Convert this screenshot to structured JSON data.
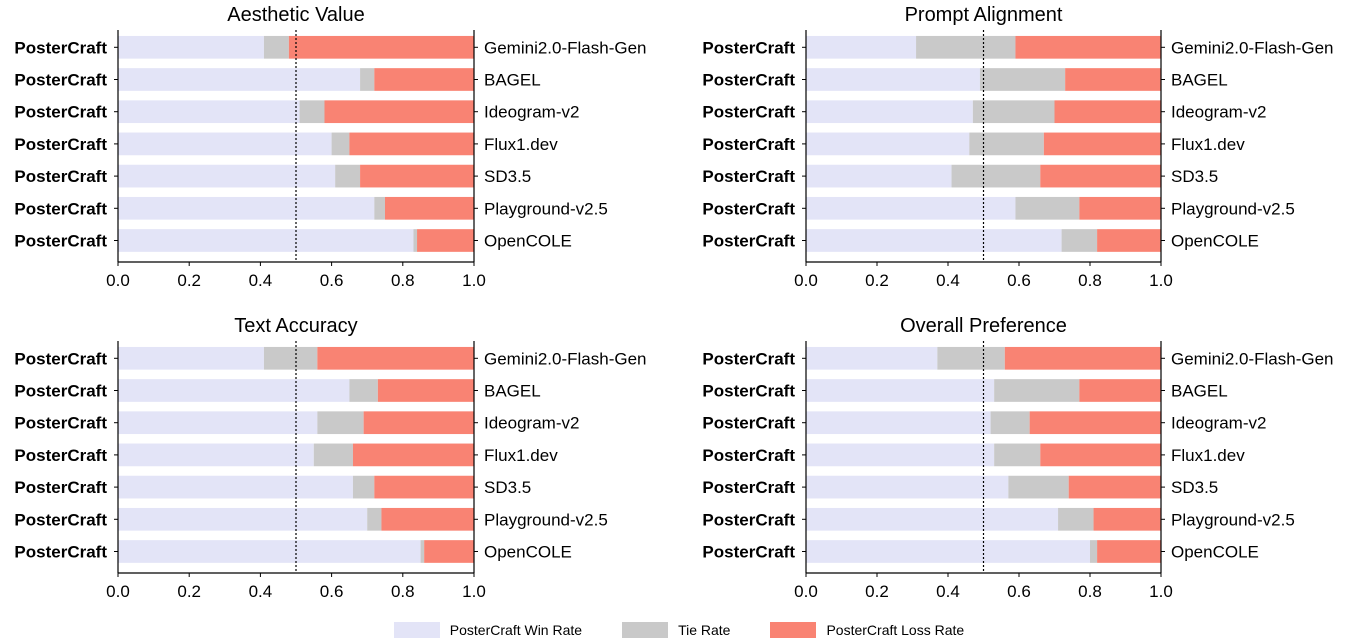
{
  "colors": {
    "win": "#e3e4f7",
    "tie": "#c9c9c9",
    "loss": "#f98373",
    "reference_line": "#000000"
  },
  "legend": {
    "win": "PosterCraft Win Rate",
    "tie": "Tie Rate",
    "loss": "PosterCraft Loss Rate",
    "placement": "bottom-center"
  },
  "chart_data": [
    {
      "type": "bar",
      "orientation": "horizontal",
      "stacked": true,
      "title": "Aesthetic Value",
      "left_label": "PosterCraft",
      "categories": [
        "Gemini2.0-Flash-Gen",
        "BAGEL",
        "Ideogram-v2",
        "Flux1.dev",
        "SD3.5",
        "Playground-v2.5",
        "OpenCOLE"
      ],
      "series": [
        {
          "name": "PosterCraft Win Rate",
          "values": [
            0.41,
            0.68,
            0.51,
            0.6,
            0.61,
            0.72,
            0.83
          ]
        },
        {
          "name": "Tie Rate",
          "values": [
            0.07,
            0.04,
            0.07,
            0.05,
            0.07,
            0.03,
            0.01
          ]
        },
        {
          "name": "PosterCraft Loss Rate",
          "values": [
            0.52,
            0.28,
            0.42,
            0.35,
            0.32,
            0.25,
            0.16
          ]
        }
      ],
      "xlim": [
        0,
        1
      ],
      "xticks": [
        "0.0",
        "0.2",
        "0.4",
        "0.6",
        "0.8",
        "1.0"
      ],
      "reference_line": 0.5
    },
    {
      "type": "bar",
      "orientation": "horizontal",
      "stacked": true,
      "title": "Prompt Alignment",
      "left_label": "PosterCraft",
      "categories": [
        "Gemini2.0-Flash-Gen",
        "BAGEL",
        "Ideogram-v2",
        "Flux1.dev",
        "SD3.5",
        "Playground-v2.5",
        "OpenCOLE"
      ],
      "series": [
        {
          "name": "PosterCraft Win Rate",
          "values": [
            0.31,
            0.49,
            0.47,
            0.46,
            0.41,
            0.59,
            0.72
          ]
        },
        {
          "name": "Tie Rate",
          "values": [
            0.28,
            0.24,
            0.23,
            0.21,
            0.25,
            0.18,
            0.1
          ]
        },
        {
          "name": "PosterCraft Loss Rate",
          "values": [
            0.41,
            0.27,
            0.3,
            0.33,
            0.34,
            0.23,
            0.18
          ]
        }
      ],
      "xlim": [
        0,
        1
      ],
      "xticks": [
        "0.0",
        "0.2",
        "0.4",
        "0.6",
        "0.8",
        "1.0"
      ],
      "reference_line": 0.5
    },
    {
      "type": "bar",
      "orientation": "horizontal",
      "stacked": true,
      "title": "Text Accuracy",
      "left_label": "PosterCraft",
      "categories": [
        "Gemini2.0-Flash-Gen",
        "BAGEL",
        "Ideogram-v2",
        "Flux1.dev",
        "SD3.5",
        "Playground-v2.5",
        "OpenCOLE"
      ],
      "series": [
        {
          "name": "PosterCraft Win Rate",
          "values": [
            0.41,
            0.65,
            0.56,
            0.55,
            0.66,
            0.7,
            0.85
          ]
        },
        {
          "name": "Tie Rate",
          "values": [
            0.15,
            0.08,
            0.13,
            0.11,
            0.06,
            0.04,
            0.01
          ]
        },
        {
          "name": "PosterCraft Loss Rate",
          "values": [
            0.44,
            0.27,
            0.31,
            0.34,
            0.28,
            0.26,
            0.14
          ]
        }
      ],
      "xlim": [
        0,
        1
      ],
      "xticks": [
        "0.0",
        "0.2",
        "0.4",
        "0.6",
        "0.8",
        "1.0"
      ],
      "reference_line": 0.5
    },
    {
      "type": "bar",
      "orientation": "horizontal",
      "stacked": true,
      "title": "Overall Preference",
      "left_label": "PosterCraft",
      "categories": [
        "Gemini2.0-Flash-Gen",
        "BAGEL",
        "Ideogram-v2",
        "Flux1.dev",
        "SD3.5",
        "Playground-v2.5",
        "OpenCOLE"
      ],
      "series": [
        {
          "name": "PosterCraft Win Rate",
          "values": [
            0.37,
            0.53,
            0.52,
            0.53,
            0.57,
            0.71,
            0.8
          ]
        },
        {
          "name": "Tie Rate",
          "values": [
            0.19,
            0.24,
            0.11,
            0.13,
            0.17,
            0.1,
            0.02
          ]
        },
        {
          "name": "PosterCraft Loss Rate",
          "values": [
            0.44,
            0.23,
            0.37,
            0.34,
            0.26,
            0.19,
            0.18
          ]
        }
      ],
      "xlim": [
        0,
        1
      ],
      "xticks": [
        "0.0",
        "0.2",
        "0.4",
        "0.6",
        "0.8",
        "1.0"
      ],
      "reference_line": 0.5
    }
  ]
}
